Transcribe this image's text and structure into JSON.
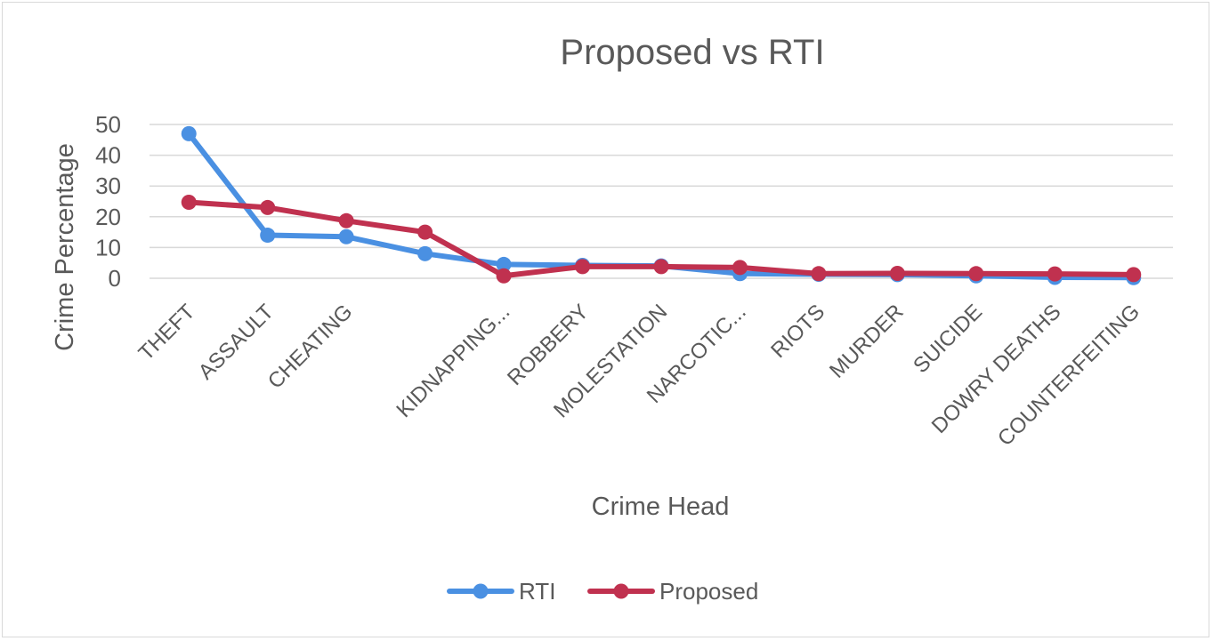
{
  "chart_data": {
    "type": "line",
    "title": "Proposed vs RTI",
    "xlabel": "Crime Head",
    "ylabel": "Crime Percentage",
    "ylim": [
      0,
      50
    ],
    "yticks": [
      0,
      10,
      20,
      30,
      40,
      50
    ],
    "grid": true,
    "legend": "bottom",
    "categories": [
      "THEFT",
      "ASSAULT",
      "CHEATING",
      "",
      "KIDNAPPING...",
      "ROBBERY",
      "MOLESTATION",
      "NARCOTIC...",
      "RIOTS",
      "MURDER",
      "SUICIDE",
      "DOWRY DEATHS",
      "COUNTERFEITING"
    ],
    "series": [
      {
        "name": "RTI",
        "color": "#4a90e2",
        "values": [
          47,
          14,
          13.5,
          8,
          4.5,
          4.2,
          4,
          1.5,
          1.3,
          1.2,
          0.8,
          0.3,
          0.2
        ]
      },
      {
        "name": "Proposed",
        "color": "#c0314f",
        "values": [
          24.7,
          23,
          18.7,
          15,
          0.8,
          3.8,
          3.8,
          3.5,
          1.5,
          1.6,
          1.5,
          1.4,
          1.2
        ]
      }
    ]
  }
}
